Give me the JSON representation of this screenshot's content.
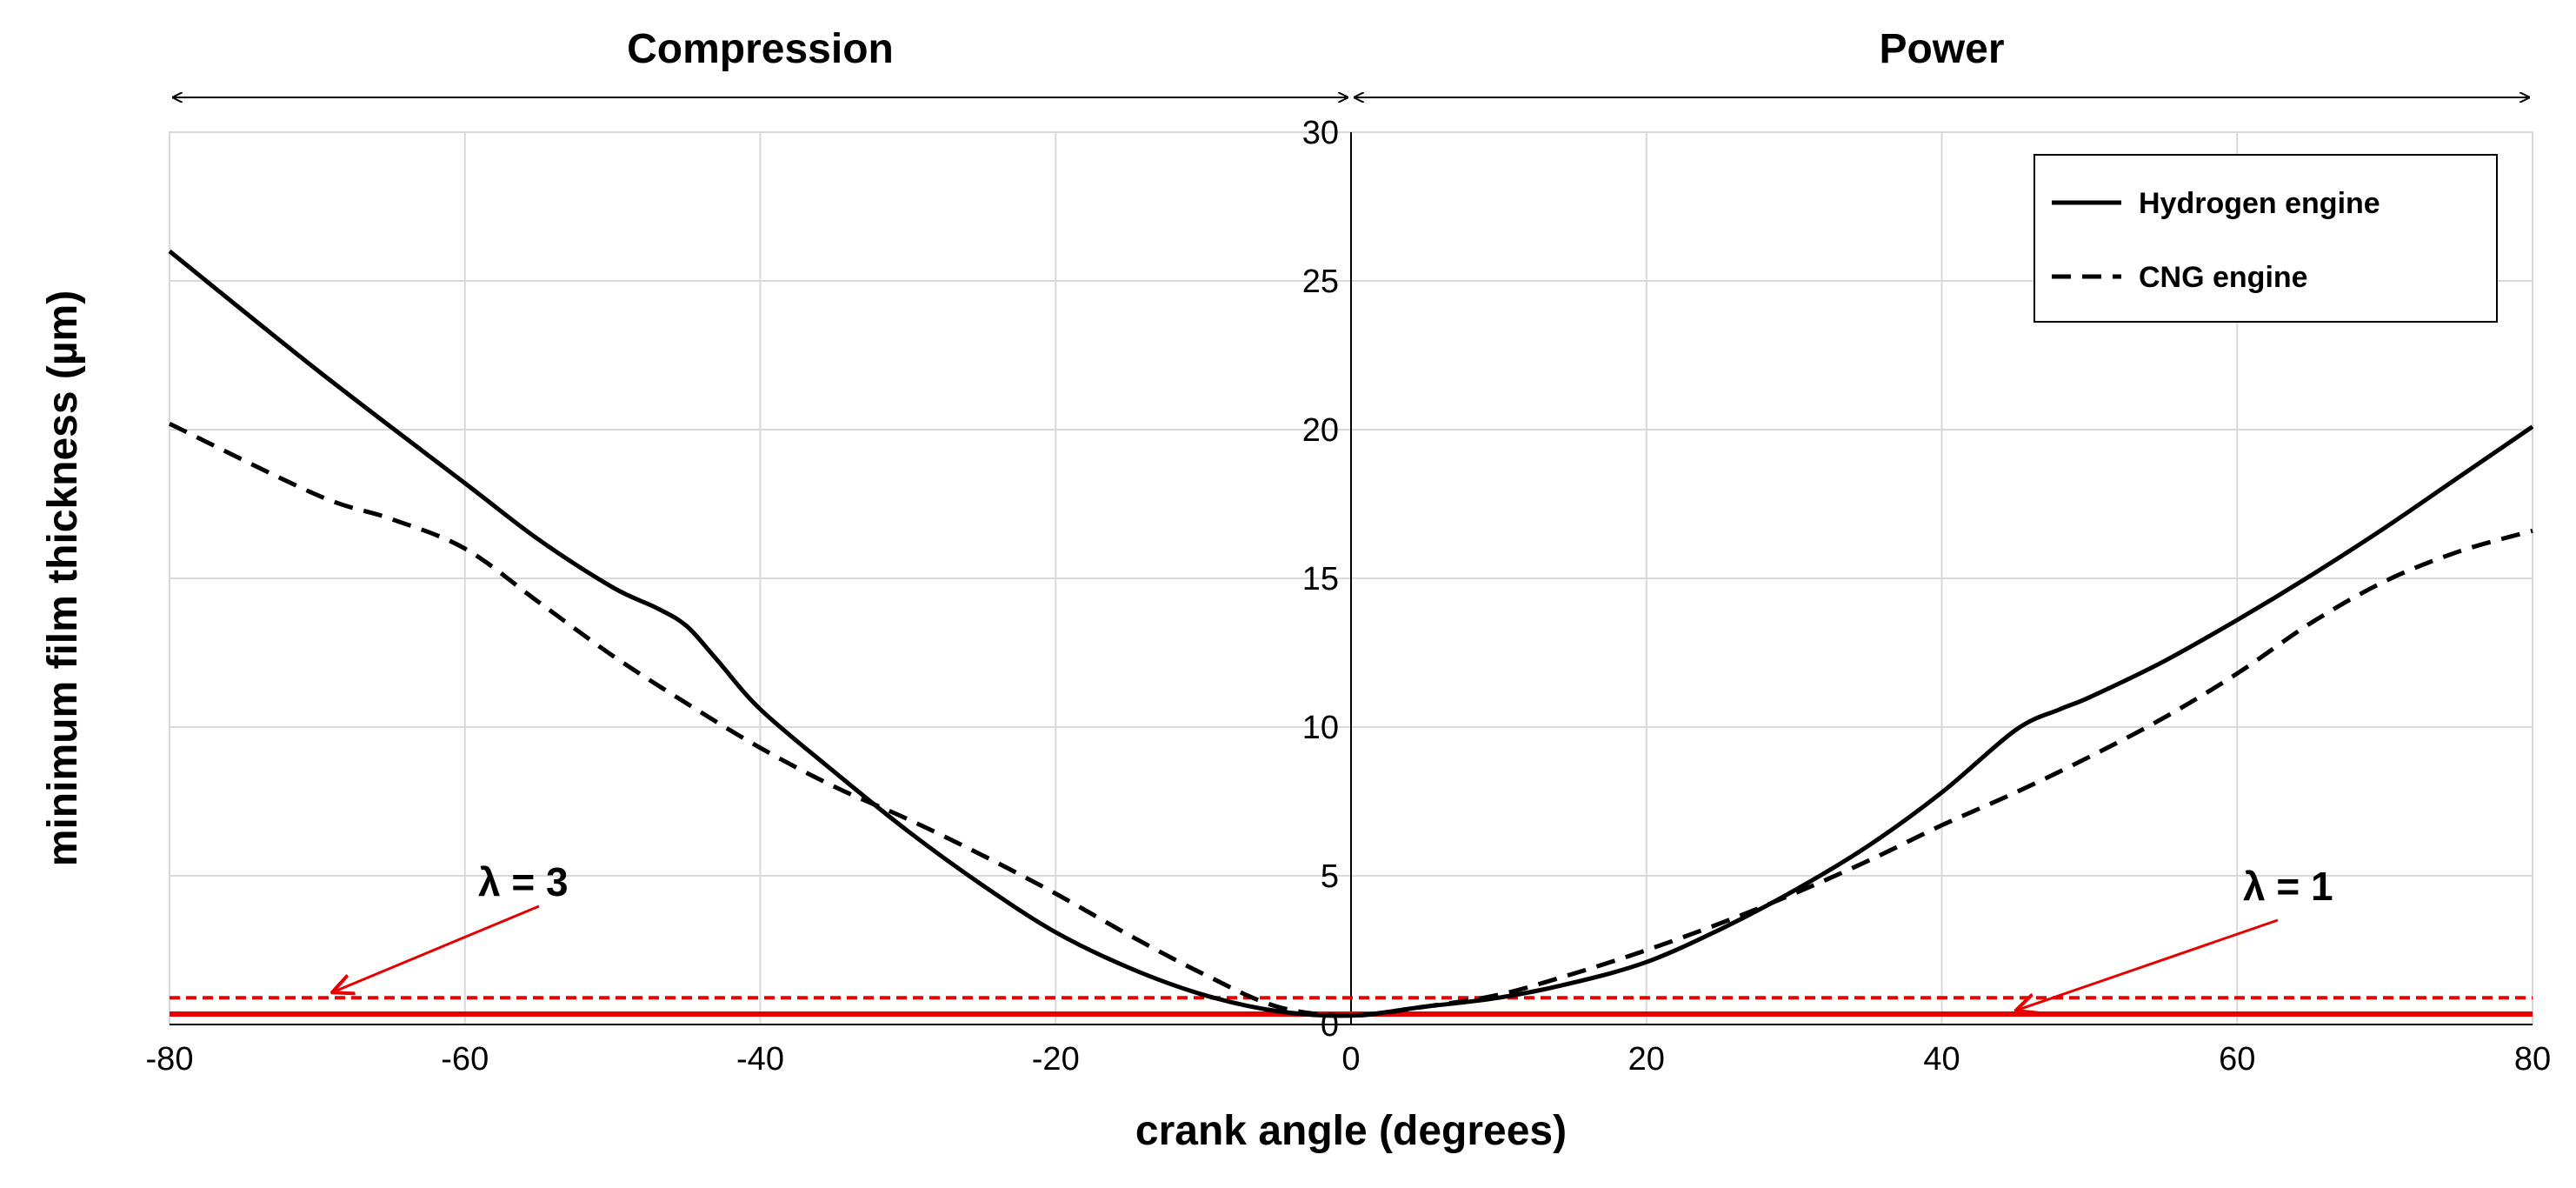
{
  "chart_data": {
    "type": "line",
    "xlabel": "crank angle (degrees)",
    "ylabel": "minimum film thickness (µm)",
    "xlim": [
      -80,
      80
    ],
    "ylim": [
      0,
      30
    ],
    "x_ticks": [
      -80,
      -60,
      -40,
      -20,
      0,
      20,
      40,
      60,
      80
    ],
    "y_ticks": [
      0,
      5,
      10,
      15,
      20,
      25,
      30
    ],
    "grid": true,
    "legend_position": "top-right",
    "phases": [
      {
        "label": "Compression",
        "range": [
          -80,
          0
        ]
      },
      {
        "label": "Power",
        "range": [
          0,
          80
        ]
      }
    ],
    "series": [
      {
        "name": "Hydrogen engine",
        "style": "solid",
        "color": "#000000",
        "x": [
          -80,
          -70,
          -60,
          -55,
          -50,
          -47,
          -45,
          -43,
          -40,
          -35,
          -30,
          -25,
          -20,
          -15,
          -10,
          -5,
          0,
          5,
          10,
          15,
          20,
          25,
          30,
          35,
          40,
          45,
          48,
          50,
          55,
          60,
          65,
          70,
          75,
          80
        ],
        "y": [
          26.0,
          22.0,
          18.2,
          16.3,
          14.7,
          14.0,
          13.4,
          12.3,
          10.6,
          8.5,
          6.5,
          4.7,
          3.1,
          1.9,
          1.0,
          0.45,
          0.3,
          0.6,
          0.9,
          1.4,
          2.1,
          3.2,
          4.5,
          6.0,
          7.8,
          9.9,
          10.6,
          11.0,
          12.2,
          13.6,
          15.1,
          16.7,
          18.4,
          20.1
        ]
      },
      {
        "name": "CNG engine",
        "style": "dashed",
        "color": "#000000",
        "x": [
          -80,
          -70,
          -65,
          -60,
          -55,
          -50,
          -45,
          -40,
          -35,
          -30,
          -25,
          -20,
          -15,
          -10,
          -5,
          0,
          5,
          10,
          15,
          20,
          25,
          30,
          35,
          40,
          45,
          50,
          55,
          60,
          65,
          70,
          75,
          80
        ],
        "y": [
          20.2,
          17.8,
          17.0,
          16.0,
          14.2,
          12.4,
          10.8,
          9.3,
          8.0,
          6.9,
          5.7,
          4.4,
          3.0,
          1.7,
          0.6,
          0.3,
          0.6,
          1.0,
          1.7,
          2.5,
          3.4,
          4.4,
          5.5,
          6.7,
          7.8,
          9.0,
          10.3,
          11.8,
          13.5,
          14.9,
          15.9,
          16.6
        ]
      }
    ],
    "reference_lines": [
      {
        "label": "λ = 3",
        "y": 0.9,
        "style": "dashed",
        "color": "#e60000",
        "arrow_to_x": -69
      },
      {
        "label": "λ = 1",
        "y": 0.35,
        "style": "solid",
        "color": "#e60000",
        "arrow_to_x": 45
      }
    ]
  }
}
